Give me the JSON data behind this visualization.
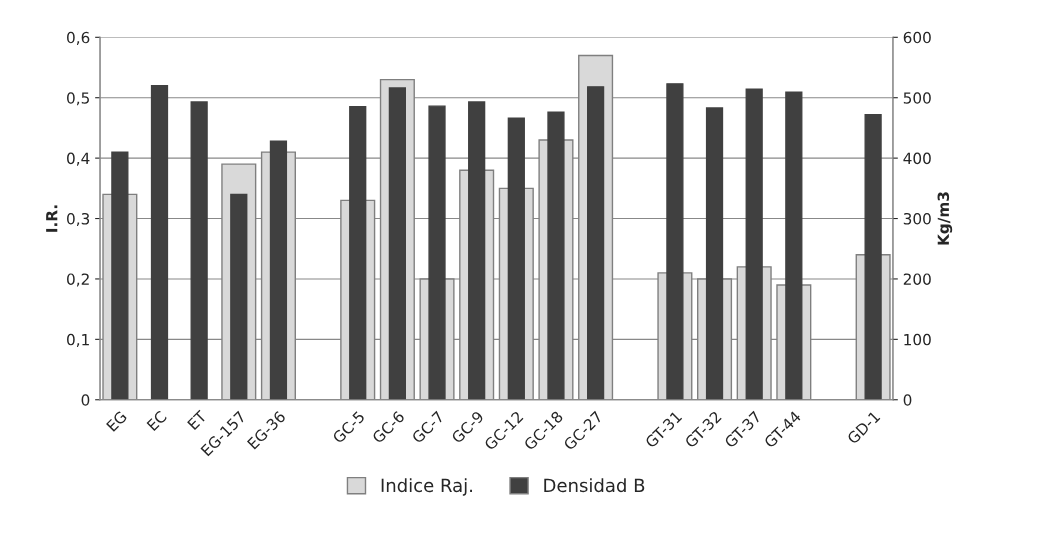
{
  "chart_data": {
    "type": "bar",
    "ylabel": "I.R.",
    "y2label": "Kg/m3",
    "categories": [
      "EG",
      "EC",
      "ET",
      "EG-157",
      "EG-36",
      null,
      "GC-5",
      "GC-6",
      "GC-7",
      "GC-9",
      "GC-12",
      "GC-18",
      "GC-27",
      null,
      "GT-31",
      "GT-32",
      "GT-37",
      "GT-44",
      null,
      "GD-1"
    ],
    "series": [
      {
        "name": "Indice Raj.",
        "color": "#d9d9d9",
        "values": [
          0.34,
          null,
          null,
          0.39,
          0.41,
          null,
          0.33,
          0.53,
          0.2,
          0.38,
          0.35,
          0.43,
          0.57,
          null,
          0.21,
          0.2,
          0.22,
          0.19,
          null,
          0.24
        ]
      },
      {
        "name": "Densidad B",
        "color": "#404040",
        "axis": "y2",
        "values": [
          410,
          520,
          493,
          340,
          428,
          null,
          485,
          516,
          486,
          493,
          466,
          476,
          518,
          null,
          523,
          483,
          514,
          509,
          null,
          472
        ]
      }
    ],
    "ylim": [
      0,
      0.6
    ],
    "yticks": [
      0,
      {
        "value": 0.1,
        "label": "0,1"
      },
      {
        "value": 0.2,
        "label": "0,2"
      },
      {
        "value": 0.3,
        "label": "0,3"
      },
      {
        "value": 0.4,
        "label": "0,4"
      },
      {
        "value": 0.5,
        "label": "0,5"
      },
      {
        "value": 0.6,
        "label": "0,6"
      }
    ],
    "y2lim": [
      0,
      600
    ],
    "y2ticks": [
      0,
      100,
      200,
      300,
      400,
      500,
      600
    ],
    "grid": "y",
    "legend": "bottom"
  }
}
